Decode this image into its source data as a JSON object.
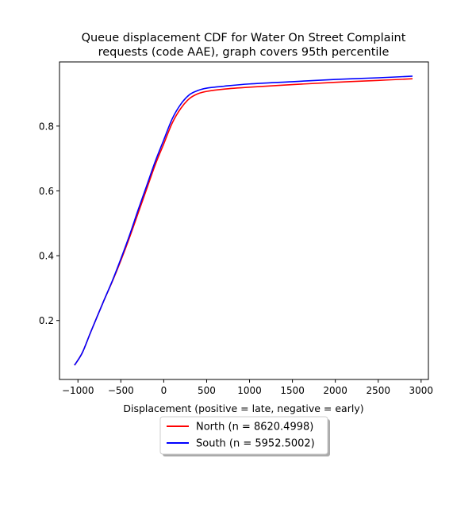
{
  "chart_data": {
    "type": "line",
    "title_lines": [
      "Queue displacement CDF for Water On Street Complaint",
      "requests (code AAE), graph covers 95th percentile"
    ],
    "xlabel": "Displacement (positive = late, negative = early)",
    "ylabel": "",
    "xlim": [
      -1215,
      3085
    ],
    "ylim": [
      0.018,
      0.998
    ],
    "xticks": [
      -1000,
      -500,
      0,
      500,
      1000,
      1500,
      2000,
      2500,
      3000
    ],
    "yticks": [
      0.2,
      0.4,
      0.6,
      0.8
    ],
    "grid": false,
    "legend_position": "below-center",
    "series": [
      {
        "name": "North (n = 8620.4998)",
        "color": "#ff0000",
        "points": [
          [
            -1040,
            0.062
          ],
          [
            -950,
            0.1
          ],
          [
            -850,
            0.165
          ],
          [
            -700,
            0.26
          ],
          [
            -600,
            0.32
          ],
          [
            -500,
            0.385
          ],
          [
            -400,
            0.455
          ],
          [
            -300,
            0.53
          ],
          [
            -200,
            0.605
          ],
          [
            -100,
            0.68
          ],
          [
            0,
            0.745
          ],
          [
            100,
            0.81
          ],
          [
            200,
            0.855
          ],
          [
            300,
            0.885
          ],
          [
            400,
            0.9
          ],
          [
            500,
            0.907
          ],
          [
            700,
            0.914
          ],
          [
            1000,
            0.92
          ],
          [
            1500,
            0.928
          ],
          [
            2000,
            0.935
          ],
          [
            2500,
            0.941
          ],
          [
            2900,
            0.946
          ]
        ]
      },
      {
        "name": "South (n = 5952.5002)",
        "color": "#0000ff",
        "points": [
          [
            -1040,
            0.062
          ],
          [
            -950,
            0.1
          ],
          [
            -850,
            0.165
          ],
          [
            -700,
            0.26
          ],
          [
            -600,
            0.322
          ],
          [
            -500,
            0.39
          ],
          [
            -400,
            0.462
          ],
          [
            -300,
            0.54
          ],
          [
            -200,
            0.615
          ],
          [
            -100,
            0.69
          ],
          [
            0,
            0.757
          ],
          [
            100,
            0.823
          ],
          [
            200,
            0.868
          ],
          [
            300,
            0.897
          ],
          [
            400,
            0.91
          ],
          [
            500,
            0.917
          ],
          [
            700,
            0.923
          ],
          [
            1000,
            0.93
          ],
          [
            1500,
            0.937
          ],
          [
            2000,
            0.944
          ],
          [
            2500,
            0.949
          ],
          [
            2900,
            0.954
          ]
        ]
      }
    ]
  }
}
